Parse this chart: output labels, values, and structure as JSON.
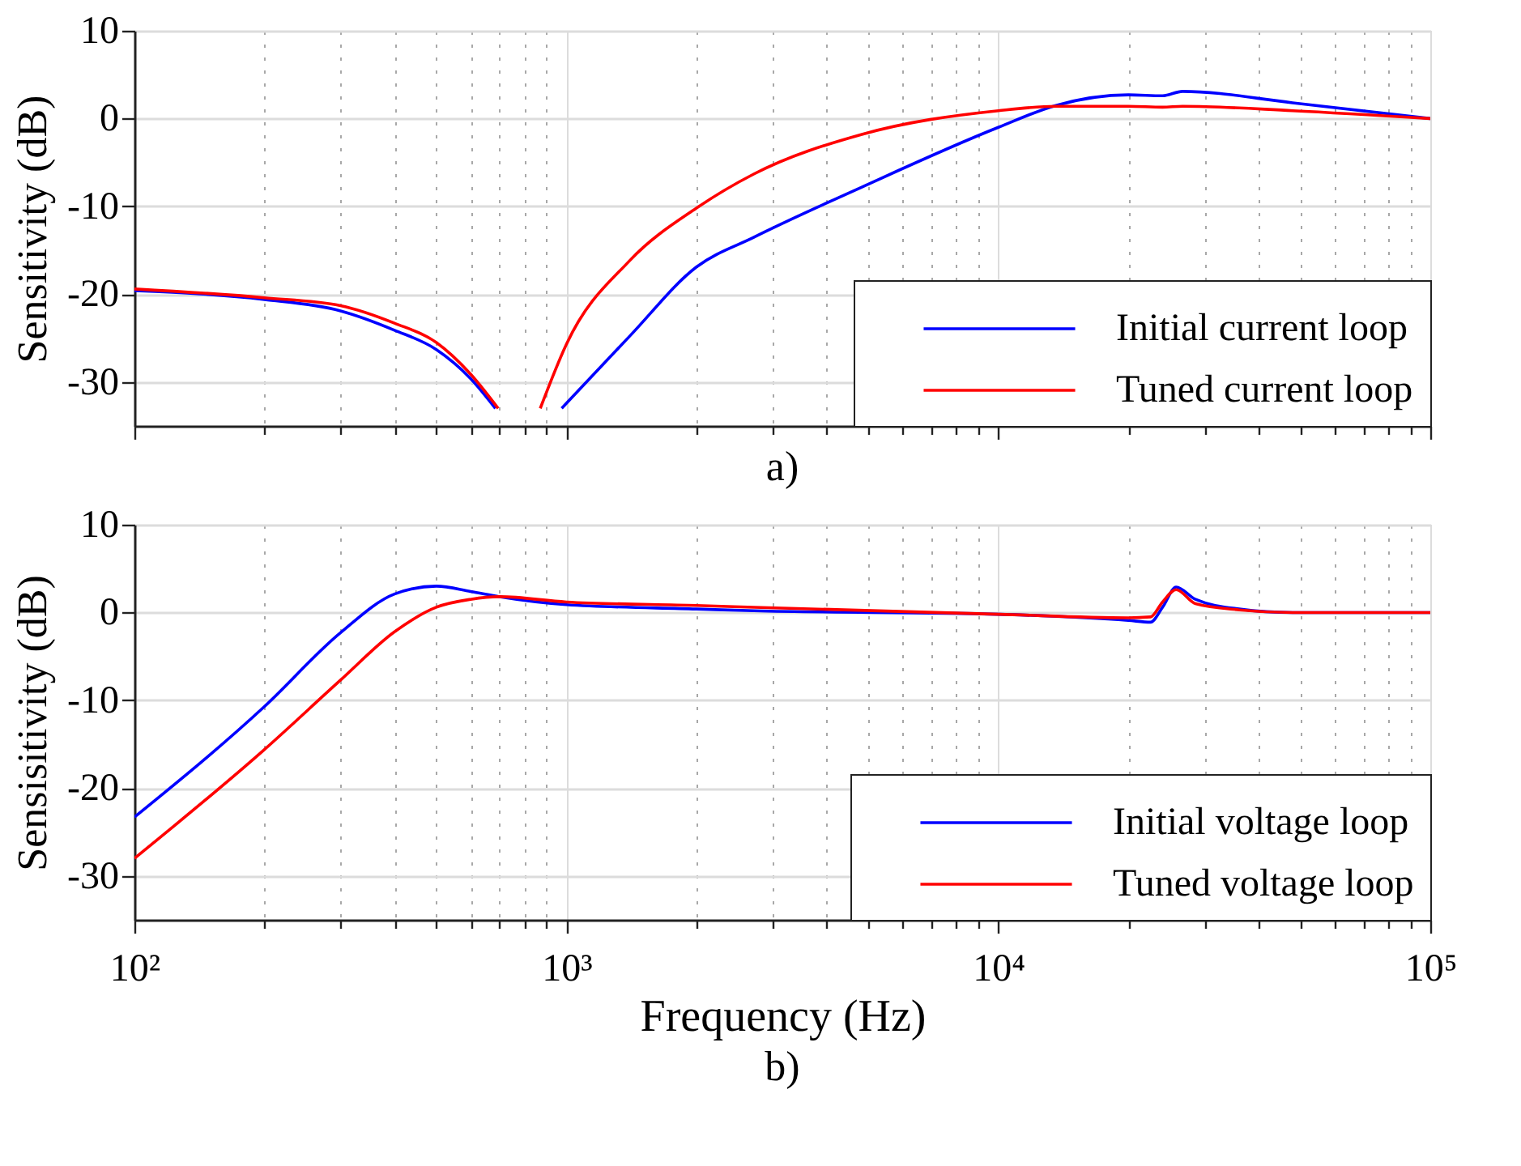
{
  "chart_data": [
    {
      "type": "line",
      "ylabel": "Sensitivity (dB)",
      "annotations": [
        "a)"
      ],
      "xlim": [
        100,
        100000
      ],
      "ylim": [
        -35,
        10
      ],
      "log": "x",
      "grid": true,
      "legend": "bottom right",
      "tick_labels": "y",
      "line_style": "solid",
      "marker": "none",
      "xticks": [
        {
          "value": 100,
          "label": null
        },
        {
          "value": 200,
          "label": null
        },
        {
          "value": 300,
          "label": null
        },
        {
          "value": 400,
          "label": null
        },
        {
          "value": 500,
          "label": null
        },
        {
          "value": 600,
          "label": null
        },
        {
          "value": 700,
          "label": null
        },
        {
          "value": 800,
          "label": null
        },
        {
          "value": 900,
          "label": null
        },
        {
          "value": 1000,
          "label": null
        },
        {
          "value": 2000,
          "label": null
        },
        {
          "value": 3000,
          "label": null
        },
        {
          "value": 4000,
          "label": null
        },
        {
          "value": 5000,
          "label": null
        },
        {
          "value": 6000,
          "label": null
        },
        {
          "value": 7000,
          "label": null
        },
        {
          "value": 8000,
          "label": null
        },
        {
          "value": 9000,
          "label": null
        },
        {
          "value": 10000,
          "label": null
        },
        {
          "value": 20000,
          "label": null
        },
        {
          "value": 30000,
          "label": null
        },
        {
          "value": 40000,
          "label": null
        },
        {
          "value": 50000,
          "label": null
        },
        {
          "value": 60000,
          "label": null
        },
        {
          "value": 70000,
          "label": null
        },
        {
          "value": 80000,
          "label": null
        },
        {
          "value": 90000,
          "label": null
        },
        {
          "value": 100000,
          "label": null
        }
      ],
      "yticks": [
        -30,
        -20,
        -10,
        0,
        10
      ],
      "series": [
        {
          "name": "Initial current loop",
          "color": "#0000ff",
          "x": [
            100,
            200,
            300,
            400,
            500,
            600,
            685,
            null,
            975,
            1400,
            2000,
            2720,
            4830,
            10000,
            13600,
            20000,
            24000,
            26700,
            48000,
            100000
          ],
          "values": [
            -19.6,
            -20.6,
            -21.9,
            -24.1,
            -26.3,
            -29.6,
            -33,
            null,
            -33,
            -24.8,
            -16.9,
            -13.5,
            -7.8,
            -1.0,
            1.5,
            2.7,
            2.6,
            3.1,
            1.8,
            0
          ]
        },
        {
          "name": "Tuned current loop",
          "color": "#ff0000",
          "x": [
            100,
            200,
            300,
            400,
            500,
            600,
            695,
            null,
            870,
            1000,
            1400,
            2000,
            2720,
            4830,
            10000,
            13600,
            20000,
            24000,
            26700,
            48000,
            100000
          ],
          "values": [
            -19.4,
            -20.4,
            -21.3,
            -23.3,
            -25.5,
            -29.1,
            -33,
            null,
            -33,
            -25.7,
            -16.2,
            -10.2,
            -6.3,
            -1.8,
            0.9,
            1.4,
            1.4,
            1.3,
            1.4,
            0.9,
            0
          ]
        }
      ]
    },
    {
      "type": "line",
      "xlabel": "Frequency (Hz)",
      "ylabel": "Sensisitivity (dB)",
      "annotations": [
        "b)"
      ],
      "xlim": [
        100,
        100000
      ],
      "ylim": [
        -35,
        10
      ],
      "log": "x",
      "grid": true,
      "legend": "bottom right",
      "line_style": "solid",
      "marker": "none",
      "xticks": [
        {
          "value": 100,
          "label": "10²"
        },
        {
          "value": 200,
          "label": null
        },
        {
          "value": 300,
          "label": null
        },
        {
          "value": 400,
          "label": null
        },
        {
          "value": 500,
          "label": null
        },
        {
          "value": 600,
          "label": null
        },
        {
          "value": 700,
          "label": null
        },
        {
          "value": 800,
          "label": null
        },
        {
          "value": 900,
          "label": null
        },
        {
          "value": 1000,
          "label": "10³"
        },
        {
          "value": 2000,
          "label": null
        },
        {
          "value": 3000,
          "label": null
        },
        {
          "value": 4000,
          "label": null
        },
        {
          "value": 5000,
          "label": null
        },
        {
          "value": 6000,
          "label": null
        },
        {
          "value": 7000,
          "label": null
        },
        {
          "value": 8000,
          "label": null
        },
        {
          "value": 9000,
          "label": null
        },
        {
          "value": 10000,
          "label": "10⁴"
        },
        {
          "value": 20000,
          "label": null
        },
        {
          "value": 30000,
          "label": null
        },
        {
          "value": 40000,
          "label": null
        },
        {
          "value": 50000,
          "label": null
        },
        {
          "value": 60000,
          "label": null
        },
        {
          "value": 70000,
          "label": null
        },
        {
          "value": 80000,
          "label": null
        },
        {
          "value": 90000,
          "label": null
        },
        {
          "value": 100000,
          "label": "10⁵"
        }
      ],
      "yticks": [
        -30,
        -20,
        -10,
        0,
        10
      ],
      "series": [
        {
          "name": "Initial voltage loop",
          "color": "#0000ff",
          "x": [
            100,
            200,
            300,
            400,
            500,
            600,
            700,
            1000,
            2000,
            2720,
            10000,
            20000,
            22500,
            24000,
            25800,
            28600,
            36100,
            48000,
            100000
          ],
          "values": [
            -23.3,
            -10.7,
            -2.3,
            2.1,
            3.0,
            2.4,
            1.8,
            0.9,
            0.4,
            0.2,
            -0.2,
            -0.9,
            -1.1,
            0.6,
            2.9,
            1.5,
            0.4,
            0,
            0
          ]
        },
        {
          "name": "Tuned voltage loop",
          "color": "#ff0000",
          "x": [
            100,
            200,
            300,
            400,
            500,
            600,
            700,
            1000,
            2000,
            2720,
            10000,
            20000,
            22500,
            24000,
            25800,
            28600,
            36100,
            48000,
            100000
          ],
          "values": [
            -28.0,
            -15.6,
            -7.7,
            -2.2,
            0.6,
            1.5,
            1.8,
            1.2,
            0.8,
            0.6,
            -0.2,
            -0.6,
            -0.5,
            1.2,
            2.6,
            1.0,
            0.3,
            0,
            0
          ]
        }
      ]
    }
  ]
}
